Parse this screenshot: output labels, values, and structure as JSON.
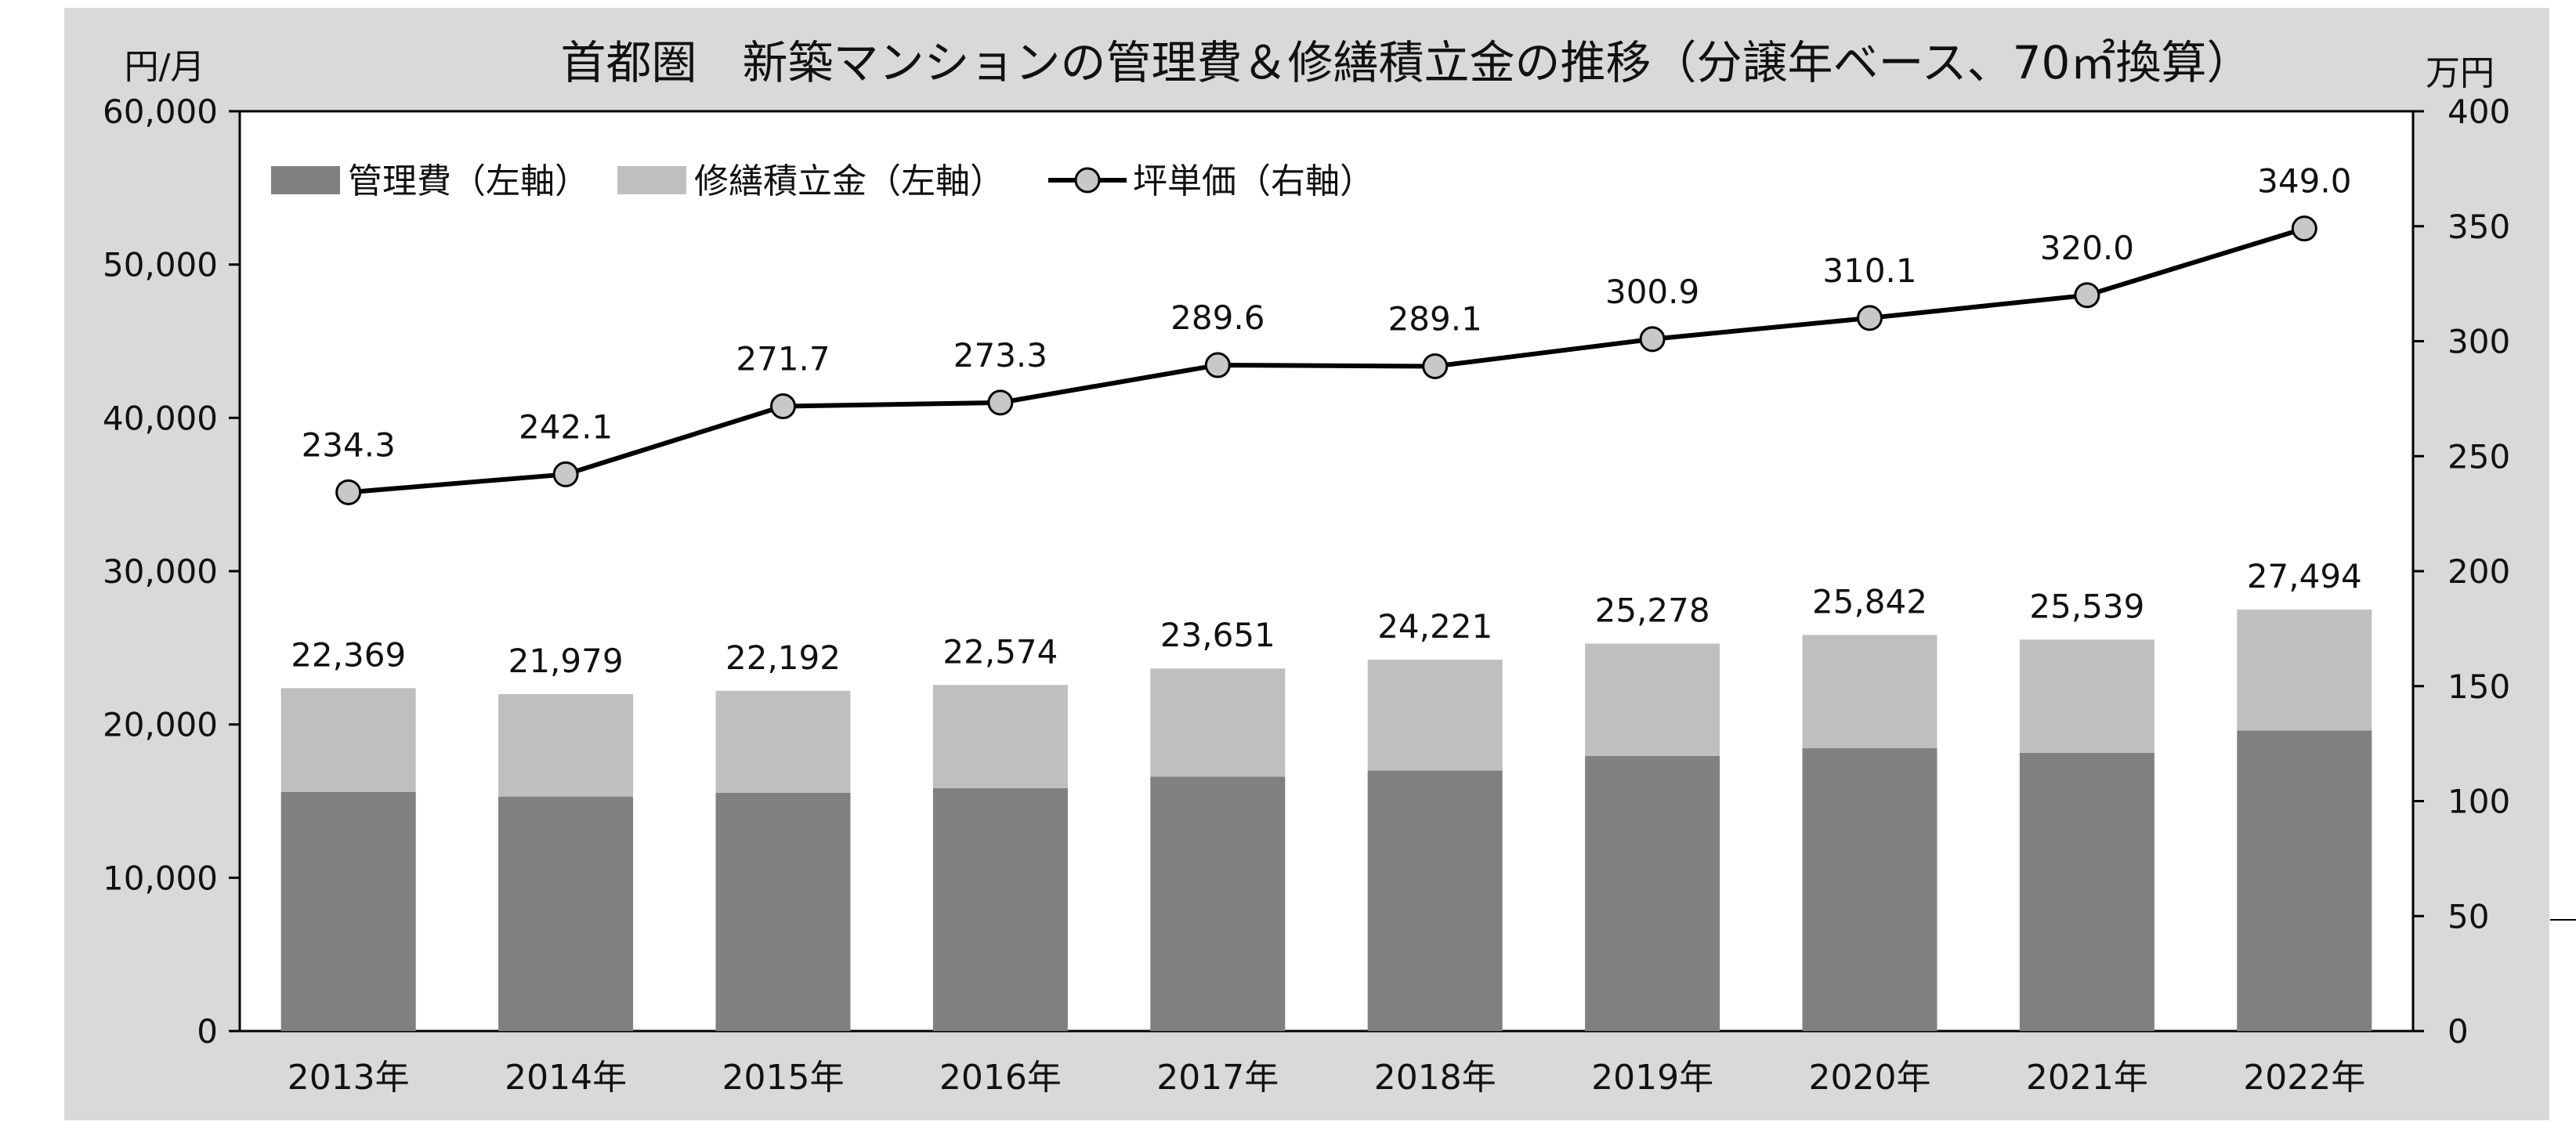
{
  "chart_data": {
    "type": "bar+line",
    "title": "首都圏　新築マンションの管理費＆修繕積立金の推移（分譲年ベース、70㎡換算）",
    "y_left_unit": "円/月",
    "y_right_unit": "万円",
    "categories": [
      "2013年",
      "2014年",
      "2015年",
      "2016年",
      "2017年",
      "2018年",
      "2019年",
      "2020年",
      "2021年",
      "2022年"
    ],
    "y_left_ticks": [
      "0",
      "10,000",
      "20,000",
      "30,000",
      "40,000",
      "50,000",
      "60,000"
    ],
    "y_right_ticks": [
      "0",
      "50",
      "100",
      "150",
      "200",
      "250",
      "300",
      "350",
      "400"
    ],
    "ylim_left": [
      0,
      60000
    ],
    "ylim_right": [
      0,
      400
    ],
    "grid": false,
    "legend_placement": "top-left",
    "series": [
      {
        "name": "管理費（左軸）",
        "type": "stacked-bar",
        "axis": "left",
        "color": "#808080",
        "values": [
          15600,
          15300,
          15550,
          15850,
          16600,
          17000,
          17950,
          18450,
          18150,
          19600
        ]
      },
      {
        "name": "修繕積立金（左軸）",
        "type": "stacked-bar",
        "axis": "left",
        "color": "#bfbfbf",
        "values": [
          6769,
          6679,
          6642,
          6724,
          7051,
          7221,
          7328,
          7392,
          7389,
          7894
        ]
      },
      {
        "name": "坪単価（右軸）",
        "type": "line",
        "axis": "right",
        "color": "#000000",
        "marker_color": "#c8c8c8",
        "values": [
          234.3,
          242.1,
          271.7,
          273.3,
          289.6,
          289.1,
          300.9,
          310.1,
          320.0,
          349.0
        ]
      }
    ],
    "bar_total_labels": [
      "22,369",
      "21,979",
      "22,192",
      "22,574",
      "23,651",
      "24,221",
      "25,278",
      "25,842",
      "25,539",
      "27,494"
    ],
    "line_labels": [
      "234.3",
      "242.1",
      "271.7",
      "273.3",
      "289.6",
      "289.1",
      "300.9",
      "310.1",
      "320.0",
      "349.0"
    ]
  }
}
